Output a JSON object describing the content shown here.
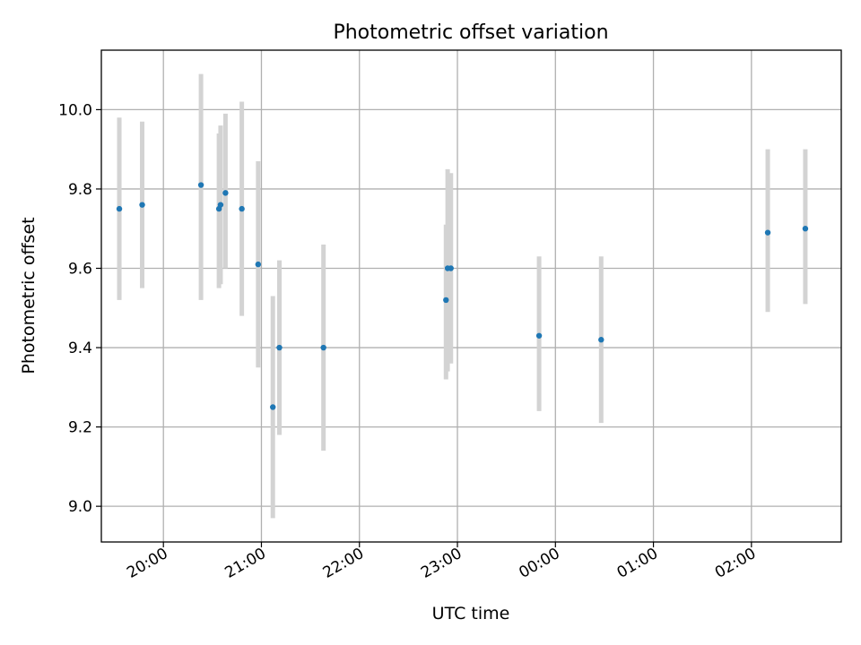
{
  "chart_data": {
    "type": "scatter",
    "title": "Photometric offset variation",
    "xlabel": "UTC time",
    "ylabel": "Photometric offset",
    "x_ticks": [
      "20:00",
      "21:00",
      "22:00",
      "23:00",
      "00:00",
      "01:00",
      "02:00"
    ],
    "y_ticks": [
      "9.0",
      "9.2",
      "9.4",
      "9.6",
      "9.8",
      "10.0"
    ],
    "xlim": [
      "19:22",
      "02:55"
    ],
    "ylim": [
      8.91,
      10.15
    ],
    "grid": true,
    "marker_color": "#1f77b4",
    "errorbar_color": "#d3d3d3",
    "points": [
      {
        "time": "19:33",
        "value": 9.75,
        "err_low": 9.52,
        "err_high": 9.98
      },
      {
        "time": "19:47",
        "value": 9.76,
        "err_low": 9.55,
        "err_high": 9.97
      },
      {
        "time": "20:23",
        "value": 9.81,
        "err_low": 9.52,
        "err_high": 10.09
      },
      {
        "time": "20:34",
        "value": 9.75,
        "err_low": 9.55,
        "err_high": 9.94
      },
      {
        "time": "20:35",
        "value": 9.76,
        "err_low": 9.56,
        "err_high": 9.96
      },
      {
        "time": "20:38",
        "value": 9.79,
        "err_low": 9.6,
        "err_high": 9.99
      },
      {
        "time": "20:48",
        "value": 9.75,
        "err_low": 9.48,
        "err_high": 10.02
      },
      {
        "time": "20:58",
        "value": 9.61,
        "err_low": 9.35,
        "err_high": 9.87
      },
      {
        "time": "21:07",
        "value": 9.25,
        "err_low": 8.97,
        "err_high": 9.53
      },
      {
        "time": "21:11",
        "value": 9.4,
        "err_low": 9.18,
        "err_high": 9.62
      },
      {
        "time": "21:38",
        "value": 9.4,
        "err_low": 9.14,
        "err_high": 9.66
      },
      {
        "time": "22:53",
        "value": 9.52,
        "err_low": 9.32,
        "err_high": 9.71
      },
      {
        "time": "22:54",
        "value": 9.6,
        "err_low": 9.34,
        "err_high": 9.85
      },
      {
        "time": "22:56",
        "value": 9.6,
        "err_low": 9.36,
        "err_high": 9.84
      },
      {
        "time": "23:50",
        "value": 9.43,
        "err_low": 9.24,
        "err_high": 9.63
      },
      {
        "time": "00:28",
        "value": 9.42,
        "err_low": 9.21,
        "err_high": 9.63
      },
      {
        "time": "02:10",
        "value": 9.69,
        "err_low": 9.49,
        "err_high": 9.9
      },
      {
        "time": "02:33",
        "value": 9.7,
        "err_low": 9.51,
        "err_high": 9.9
      }
    ]
  }
}
